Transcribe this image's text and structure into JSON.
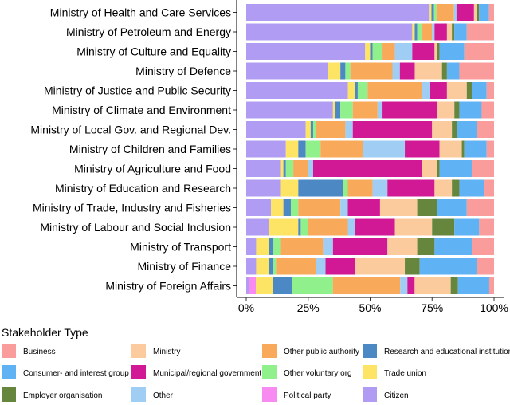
{
  "chart_data": {
    "type": "bar",
    "orientation": "horizontal",
    "stacked": true,
    "normalized": true,
    "xlim": [
      0,
      100
    ],
    "xticks": [
      "0%",
      "25%",
      "50%",
      "75%",
      "100%"
    ],
    "legend_title": "Stakeholder Type",
    "legend_position": "bottom",
    "categories": [
      "Ministry of Health and Care Services",
      "Ministry of Petroleum and Energy",
      "Ministry of Culture and Equality",
      "Ministry of Defence",
      "Ministry of Justice and Public Security",
      "Ministry of Climate and Environment",
      "Ministry of Local Gov. and Regional Dev.",
      "Ministry of Children and Families",
      "Ministry of Agriculture and Food",
      "Ministry of Education and Research",
      "Ministry of Trade, Industry and Fisheries",
      "Ministry of Labour and Social Inclusion",
      "Ministry of Transport",
      "Ministry of Finance",
      "Ministry of Foreign Affairs"
    ],
    "stack_order": [
      "Citizen",
      "Political party",
      "Trade union",
      "Research and educational institution",
      "Other voluntary org",
      "Other public authority",
      "Other",
      "Municipal/regional government",
      "Ministry",
      "Employer organisation",
      "Consumer- and interest group",
      "Business"
    ],
    "series": [
      {
        "name": "Citizen",
        "color": "#b19cf4",
        "values": [
          73,
          67,
          48,
          33,
          41,
          35,
          24,
          16,
          14,
          14,
          10,
          9,
          4,
          4,
          1
        ]
      },
      {
        "name": "Political party",
        "color": "#f78bf2",
        "values": [
          0,
          0,
          0,
          0,
          0,
          0,
          0,
          0,
          0,
          0,
          0,
          0,
          0,
          0,
          3
        ]
      },
      {
        "name": "Trade union",
        "color": "#fde464",
        "values": [
          1,
          1,
          2,
          5,
          3,
          1,
          2,
          5,
          1,
          7,
          5,
          12,
          5,
          5,
          7
        ]
      },
      {
        "name": "Research and educational institution",
        "color": "#4c88c4",
        "values": [
          1,
          1,
          1,
          2,
          1,
          2,
          1,
          3,
          1,
          18,
          3,
          1,
          2,
          2,
          8
        ]
      },
      {
        "name": "Other voluntary org",
        "color": "#90f08c",
        "values": [
          1,
          2,
          4,
          2,
          4,
          5,
          1,
          6,
          3,
          2,
          3,
          3,
          3,
          1,
          17
        ]
      },
      {
        "name": "Other public authority",
        "color": "#f9a95a",
        "values": [
          7,
          4,
          5,
          17,
          22,
          10,
          12,
          17,
          6,
          10,
          17,
          16,
          17,
          16,
          28
        ]
      },
      {
        "name": "Other",
        "color": "#9fcdf4",
        "values": [
          1,
          1,
          7,
          3,
          3,
          2,
          3,
          17,
          2,
          6,
          3,
          3,
          4,
          4,
          3
        ]
      },
      {
        "name": "Municipal/regional government",
        "color": "#d21995",
        "values": [
          7,
          5,
          9,
          6,
          7,
          22,
          32,
          14,
          44,
          19,
          13,
          16,
          22,
          12,
          3
        ]
      },
      {
        "name": "Ministry",
        "color": "#fbcb9d",
        "values": [
          1,
          2,
          1,
          11,
          8,
          7,
          8,
          9,
          6,
          7,
          15,
          15,
          12,
          20,
          15
        ]
      },
      {
        "name": "Employer organisation",
        "color": "#67863d",
        "values": [
          1,
          1,
          1,
          2,
          2,
          2,
          2,
          1,
          1,
          3,
          8,
          9,
          7,
          6,
          3
        ]
      },
      {
        "name": "Consumer- and interest group",
        "color": "#5fb2f4",
        "values": [
          4,
          5,
          10,
          5,
          6,
          9,
          8,
          9,
          13,
          10,
          12,
          10,
          15,
          23,
          13
        ]
      },
      {
        "name": "Business",
        "color": "#fb9c9c",
        "values": [
          2,
          11,
          12,
          14,
          3,
          5,
          7,
          3,
          9,
          4,
          11,
          6,
          9,
          7,
          2
        ]
      }
    ],
    "legend_order": [
      "Business",
      "Ministry",
      "Other public authority",
      "Research and educational institution",
      "Consumer- and interest group",
      "Municipal/regional government",
      "Other voluntary org",
      "Trade union",
      "Employer organisation",
      "Other",
      "Political party",
      "Citizen"
    ]
  }
}
